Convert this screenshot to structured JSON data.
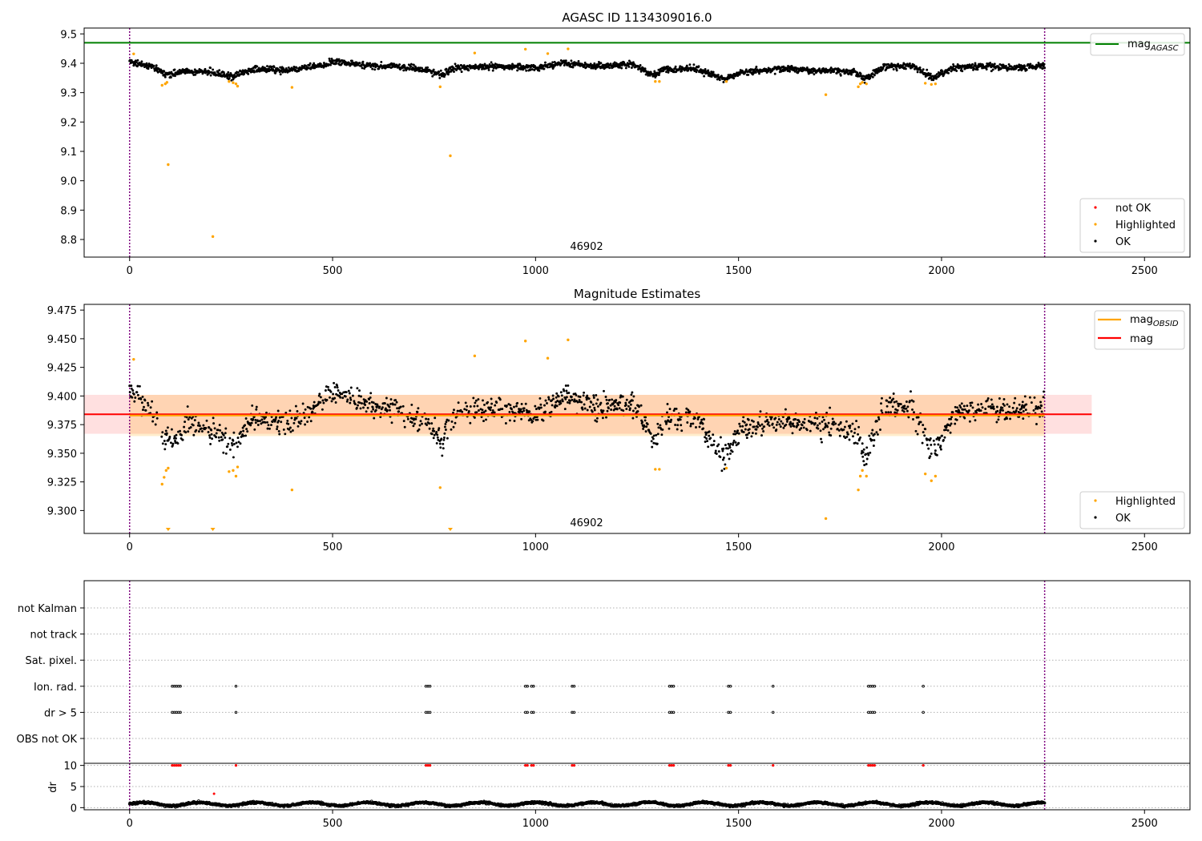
{
  "chart_data": [
    {
      "type": "scatter",
      "title": "AGASC ID 1134309016.0",
      "annotation": "46902",
      "xlim": [
        -112,
        2612
      ],
      "ylim": [
        8.74,
        9.52
      ],
      "xticks": [
        0,
        500,
        1000,
        1500,
        2000,
        2500
      ],
      "yticks": [
        8.8,
        8.9,
        9.0,
        9.1,
        9.2,
        9.3,
        9.4,
        9.5
      ],
      "x_range": [
        0,
        2254
      ],
      "vlines": [
        0,
        2254
      ],
      "hline": {
        "name": "mag_AGASC",
        "y": 9.47,
        "color": "#008000"
      },
      "legend_line_label": "mag",
      "legend_line_sub": "AGASC",
      "legend_scatter": [
        {
          "name": "not OK",
          "color": "#ff0000"
        },
        {
          "name": "Highlighted",
          "color": "#ffa500"
        },
        {
          "name": "OK",
          "color": "#000000"
        }
      ],
      "ok_trend": [
        [
          0,
          9.405
        ],
        [
          60,
          9.385
        ],
        [
          95,
          9.36
        ],
        [
          140,
          9.375
        ],
        [
          200,
          9.37
        ],
        [
          255,
          9.355
        ],
        [
          300,
          9.38
        ],
        [
          400,
          9.375
        ],
        [
          450,
          9.39
        ],
        [
          510,
          9.405
        ],
        [
          600,
          9.39
        ],
        [
          660,
          9.39
        ],
        [
          740,
          9.375
        ],
        [
          770,
          9.36
        ],
        [
          800,
          9.385
        ],
        [
          900,
          9.39
        ],
        [
          1000,
          9.385
        ],
        [
          1070,
          9.4
        ],
        [
          1150,
          9.39
        ],
        [
          1240,
          9.395
        ],
        [
          1290,
          9.36
        ],
        [
          1320,
          9.38
        ],
        [
          1400,
          9.38
        ],
        [
          1465,
          9.345
        ],
        [
          1510,
          9.37
        ],
        [
          1600,
          9.38
        ],
        [
          1700,
          9.375
        ],
        [
          1790,
          9.37
        ],
        [
          1810,
          9.345
        ],
        [
          1860,
          9.39
        ],
        [
          1930,
          9.39
        ],
        [
          1980,
          9.35
        ],
        [
          2030,
          9.385
        ],
        [
          2100,
          9.39
        ],
        [
          2170,
          9.385
        ],
        [
          2254,
          9.39
        ]
      ],
      "highlighted": [
        [
          10,
          9.432
        ],
        [
          80,
          9.325
        ],
        [
          88,
          9.33
        ],
        [
          92,
          9.335
        ],
        [
          95,
          9.055
        ],
        [
          205,
          8.81
        ],
        [
          245,
          9.338
        ],
        [
          255,
          9.334
        ],
        [
          262,
          9.33
        ],
        [
          266,
          9.322
        ],
        [
          400,
          9.318
        ],
        [
          765,
          9.32
        ],
        [
          790,
          9.085
        ],
        [
          850,
          9.435
        ],
        [
          975,
          9.448
        ],
        [
          1030,
          9.433
        ],
        [
          1080,
          9.449
        ],
        [
          1295,
          9.338
        ],
        [
          1305,
          9.338
        ],
        [
          1470,
          9.338
        ],
        [
          1715,
          9.293
        ],
        [
          1795,
          9.32
        ],
        [
          1800,
          9.33
        ],
        [
          1805,
          9.335
        ],
        [
          1815,
          9.33
        ],
        [
          1960,
          9.332
        ],
        [
          1975,
          9.328
        ],
        [
          1985,
          9.33
        ]
      ]
    },
    {
      "type": "scatter",
      "title": "Magnitude Estimates",
      "annotation": "46902",
      "xlim": [
        -112,
        2612
      ],
      "ylim": [
        9.28,
        9.48
      ],
      "xticks": [
        0,
        500,
        1000,
        1500,
        2000,
        2500
      ],
      "yticks": [
        9.3,
        9.325,
        9.35,
        9.375,
        9.4,
        9.425,
        9.45,
        9.475
      ],
      "x_range": [
        0,
        2254
      ],
      "vlines": [
        0,
        2254
      ],
      "mag": {
        "y": 9.384,
        "band": [
          9.367,
          9.401
        ],
        "x_span": [
          -112,
          2370
        ],
        "color": "#ff0000"
      },
      "mag_obsid": {
        "y": 9.383,
        "band": [
          9.365,
          9.401
        ],
        "x_span": [
          0,
          2254
        ],
        "color": "#ffa500"
      },
      "legend_lines": [
        {
          "name": "mag",
          "sub": "OBSID",
          "color": "#ffa500"
        },
        {
          "name": "mag",
          "sub": "",
          "color": "#ff0000"
        }
      ],
      "legend_scatter": [
        {
          "name": "Highlighted",
          "color": "#ffa500"
        },
        {
          "name": "OK",
          "color": "#000000"
        }
      ],
      "highlighted": [
        [
          10,
          9.432
        ],
        [
          80,
          9.323
        ],
        [
          85,
          9.329
        ],
        [
          90,
          9.335
        ],
        [
          95,
          9.337
        ],
        [
          245,
          9.334
        ],
        [
          255,
          9.335
        ],
        [
          262,
          9.33
        ],
        [
          266,
          9.338
        ],
        [
          400,
          9.318
        ],
        [
          765,
          9.32
        ],
        [
          850,
          9.435
        ],
        [
          975,
          9.448
        ],
        [
          1030,
          9.433
        ],
        [
          1080,
          9.449
        ],
        [
          1295,
          9.336
        ],
        [
          1305,
          9.336
        ],
        [
          1470,
          9.337
        ],
        [
          1715,
          9.293
        ],
        [
          1795,
          9.318
        ],
        [
          1800,
          9.33
        ],
        [
          1805,
          9.335
        ],
        [
          1815,
          9.33
        ],
        [
          1960,
          9.332
        ],
        [
          1975,
          9.326
        ],
        [
          1985,
          9.33
        ]
      ],
      "below_range": [
        95,
        205,
        790
      ]
    },
    {
      "type": "scatter",
      "title": "",
      "xlim": [
        -112,
        2612
      ],
      "xticks": [
        0,
        500,
        1000,
        1500,
        2000,
        2500
      ],
      "vlines": [
        0,
        2254
      ],
      "flag_rows": [
        "not Kalman",
        "not track",
        "Sat. pixel.",
        "Ion. rad.",
        "dr > 5",
        "OBS not OK"
      ],
      "flag_rows_points": {
        "Ion. rad.": [
          105,
          110,
          115,
          120,
          125,
          262,
          730,
          735,
          740,
          975,
          980,
          990,
          995,
          1090,
          1095,
          1330,
          1335,
          1340,
          1475,
          1480,
          1585,
          1820,
          1825,
          1830,
          1835,
          1955
        ],
        "dr > 5": [
          105,
          110,
          115,
          120,
          125,
          262,
          730,
          735,
          740,
          975,
          980,
          990,
          995,
          1090,
          1095,
          1330,
          1335,
          1340,
          1475,
          1480,
          1585,
          1820,
          1825,
          1830,
          1835,
          1955
        ]
      },
      "dr": {
        "ylabel": "dr",
        "ylim": [
          -0.5,
          10.5
        ],
        "yticks": [
          0,
          5,
          10
        ],
        "clip_value": 10,
        "clipped_x": [
          105,
          110,
          115,
          120,
          125,
          262,
          730,
          735,
          740,
          975,
          980,
          990,
          995,
          1090,
          1095,
          1330,
          1335,
          1340,
          1475,
          1480,
          1585,
          1820,
          1825,
          1830,
          1835,
          1955
        ],
        "outlier": [
          [
            208,
            3.3
          ]
        ]
      }
    }
  ]
}
